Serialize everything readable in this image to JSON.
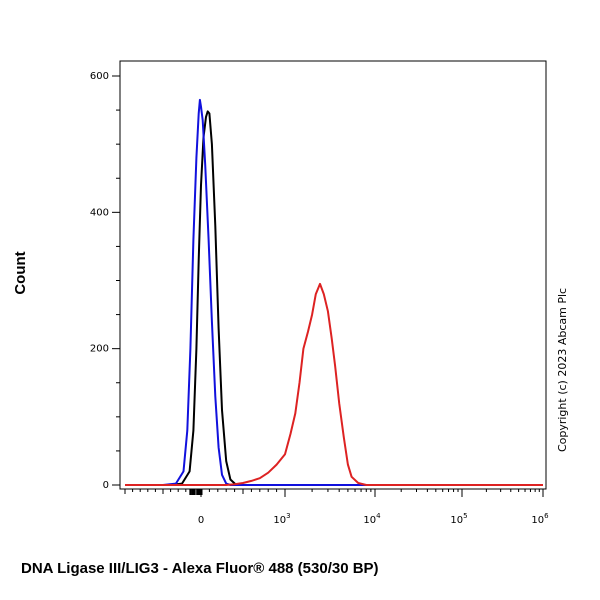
{
  "chart_data": {
    "type": "line",
    "title": "",
    "xlabel": "DNA Ligase III/LIG3 - Alexa Fluor® 488 (530/30 BP)",
    "ylabel": "Count",
    "x_scale": "biexponential",
    "xlim": [
      -1000,
      1000000
    ],
    "ylim": [
      0,
      600
    ],
    "y_ticks": [
      0,
      200,
      400,
      600
    ],
    "x_tick_labels": [
      {
        "value": 0,
        "base": "0",
        "exp": ""
      },
      {
        "value": 1000,
        "base": "10",
        "exp": "3"
      },
      {
        "value": 10000,
        "base": "10",
        "exp": "4"
      },
      {
        "value": 100000,
        "base": "10",
        "exp": "5"
      },
      {
        "value": 1000000,
        "base": "10",
        "exp": "6"
      }
    ],
    "grid": false,
    "legend": "none",
    "annotations": [
      "Copyright (c) 2023 Abcam Plc"
    ],
    "series": [
      {
        "color": "#000000",
        "points": [
          [
            -400,
            0
          ],
          [
            -250,
            2
          ],
          [
            -150,
            20
          ],
          [
            -100,
            80
          ],
          [
            -60,
            200
          ],
          [
            -30,
            330
          ],
          [
            0,
            440
          ],
          [
            30,
            510
          ],
          [
            60,
            540
          ],
          [
            80,
            548
          ],
          [
            100,
            545
          ],
          [
            130,
            500
          ],
          [
            170,
            380
          ],
          [
            210,
            230
          ],
          [
            250,
            110
          ],
          [
            300,
            35
          ],
          [
            350,
            8
          ],
          [
            420,
            0
          ],
          [
            600,
            0
          ],
          [
            2000,
            0
          ],
          [
            1000000,
            0
          ]
        ]
      },
      {
        "color": "#1111dd",
        "points": [
          [
            -500,
            0
          ],
          [
            -330,
            2
          ],
          [
            -230,
            20
          ],
          [
            -180,
            80
          ],
          [
            -140,
            200
          ],
          [
            -100,
            360
          ],
          [
            -60,
            480
          ],
          [
            -30,
            545
          ],
          [
            -15,
            565
          ],
          [
            0,
            555
          ],
          [
            20,
            535
          ],
          [
            50,
            470
          ],
          [
            90,
            360
          ],
          [
            130,
            240
          ],
          [
            170,
            130
          ],
          [
            210,
            55
          ],
          [
            250,
            15
          ],
          [
            300,
            2
          ],
          [
            350,
            0
          ],
          [
            600,
            0
          ],
          [
            2000,
            0
          ],
          [
            1000000,
            0
          ]
        ]
      },
      {
        "color": "#dd2222",
        "points": [
          [
            -1000,
            0
          ],
          [
            300,
            0
          ],
          [
            400,
            1
          ],
          [
            500,
            3
          ],
          [
            600,
            6
          ],
          [
            700,
            10
          ],
          [
            800,
            18
          ],
          [
            900,
            30
          ],
          [
            1000,
            45
          ],
          [
            1150,
            75
          ],
          [
            1300,
            105
          ],
          [
            1450,
            150
          ],
          [
            1600,
            200
          ],
          [
            1800,
            225
          ],
          [
            2000,
            250
          ],
          [
            2200,
            280
          ],
          [
            2450,
            295
          ],
          [
            2700,
            280
          ],
          [
            3000,
            255
          ],
          [
            3300,
            215
          ],
          [
            3600,
            175
          ],
          [
            4000,
            120
          ],
          [
            4500,
            70
          ],
          [
            5000,
            30
          ],
          [
            5500,
            12
          ],
          [
            6500,
            3
          ],
          [
            8000,
            0
          ],
          [
            1000000,
            0
          ]
        ]
      }
    ]
  }
}
